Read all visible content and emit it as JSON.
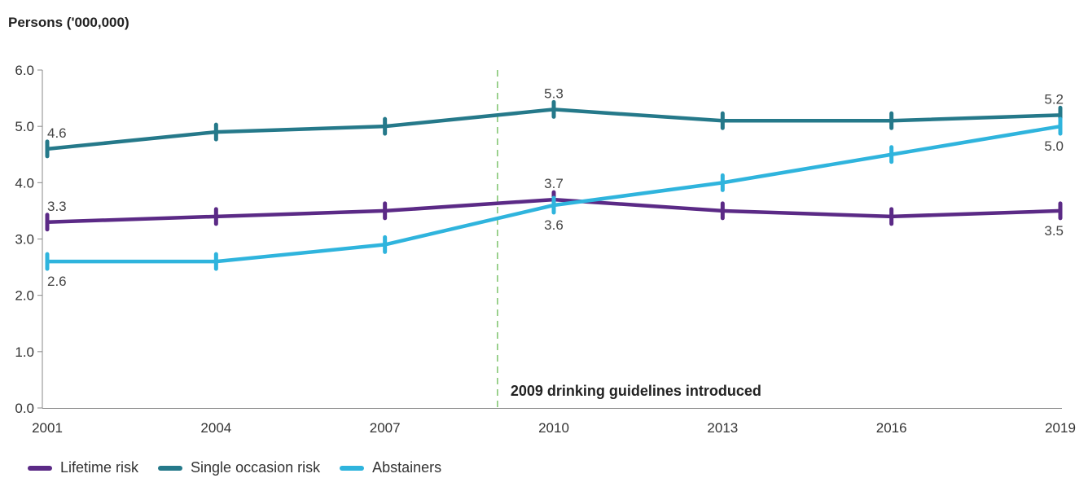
{
  "chart_data": {
    "type": "line",
    "ylabel": "Persons ('000,000)",
    "x": [
      "2001",
      "2004",
      "2007",
      "2010",
      "2013",
      "2016",
      "2019"
    ],
    "ylim": [
      0,
      6
    ],
    "yticks": [
      "0.0",
      "1.0",
      "2.0",
      "3.0",
      "4.0",
      "5.0",
      "6.0"
    ],
    "series": [
      {
        "name": "Lifetime risk",
        "color": "#5b2a86",
        "values": [
          3.3,
          3.4,
          3.5,
          3.7,
          3.5,
          3.4,
          3.5
        ]
      },
      {
        "name": "Single occasion risk",
        "color": "#25798a",
        "values": [
          4.6,
          4.9,
          5.0,
          5.3,
          5.1,
          5.1,
          5.2
        ]
      },
      {
        "name": "Abstainers",
        "color": "#2fb4dd",
        "values": [
          2.6,
          2.6,
          2.9,
          3.6,
          4.0,
          4.5,
          5.0
        ]
      }
    ],
    "data_labels": [
      {
        "series": 0,
        "index": 0,
        "text": "3.3",
        "pos": "above"
      },
      {
        "series": 0,
        "index": 3,
        "text": "3.7",
        "pos": "above"
      },
      {
        "series": 0,
        "index": 6,
        "text": "3.5",
        "pos": "below"
      },
      {
        "series": 1,
        "index": 0,
        "text": "4.6",
        "pos": "above"
      },
      {
        "series": 1,
        "index": 3,
        "text": "5.3",
        "pos": "above"
      },
      {
        "series": 1,
        "index": 6,
        "text": "5.2",
        "pos": "above"
      },
      {
        "series": 2,
        "index": 0,
        "text": "2.6",
        "pos": "below"
      },
      {
        "series": 2,
        "index": 3,
        "text": "3.6",
        "pos": "below"
      },
      {
        "series": 2,
        "index": 6,
        "text": "5.0",
        "pos": "below"
      }
    ],
    "reference_line": {
      "x": 2009,
      "label": "2009 drinking guidelines introduced",
      "color": "#7dc36b"
    },
    "grid": false,
    "legend_position": "bottom-left"
  }
}
